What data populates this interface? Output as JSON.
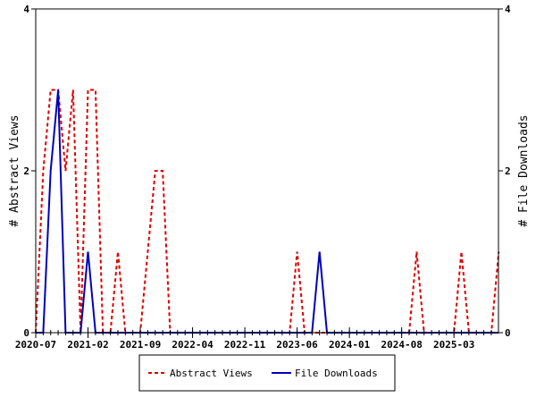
{
  "chart_data": {
    "type": "line",
    "title": "",
    "xlabel": "",
    "ylabel_left": "# Abstract Views",
    "ylabel_right": "# File Downloads",
    "ylim": [
      0,
      4
    ],
    "yticks": [
      "0",
      "2",
      "4"
    ],
    "x_start": "2020-07",
    "x_count_months": 63,
    "xtick_labels": [
      "2020-07",
      "2021-02",
      "2021-09",
      "2022-04",
      "2022-11",
      "2023-06",
      "2024-01",
      "2024-08",
      "2025-03"
    ],
    "xtick_month_index": [
      0,
      7,
      14,
      21,
      28,
      35,
      42,
      49,
      56
    ],
    "legend_position": "bottom",
    "series": [
      {
        "name": "Abstract Views",
        "color": "#dd0000",
        "style": "dashed",
        "values": [
          0,
          2,
          3,
          3,
          2,
          3,
          0,
          3,
          3,
          0,
          0,
          1,
          0,
          0,
          0,
          1,
          2,
          2,
          0,
          0,
          0,
          0,
          0,
          0,
          0,
          0,
          0,
          0,
          0,
          0,
          0,
          0,
          0,
          0,
          0,
          1,
          0,
          0,
          0,
          0,
          0,
          0,
          0,
          0,
          0,
          0,
          0,
          0,
          0,
          0,
          0,
          1,
          0,
          0,
          0,
          0,
          0,
          1,
          0,
          0,
          0,
          0,
          1
        ]
      },
      {
        "name": "File Downloads",
        "color": "#0000bb",
        "style": "solid",
        "values": [
          0,
          0,
          2,
          3,
          0,
          0,
          0,
          1,
          0,
          0,
          0,
          0,
          0,
          0,
          0,
          0,
          0,
          0,
          0,
          0,
          0,
          0,
          0,
          0,
          0,
          0,
          0,
          0,
          0,
          0,
          0,
          0,
          0,
          0,
          0,
          0,
          0,
          0,
          1,
          0,
          0,
          0,
          0,
          0,
          0,
          0,
          0,
          0,
          0,
          0,
          0,
          0,
          0,
          0,
          0,
          0,
          0,
          0,
          0,
          0,
          0,
          0,
          0
        ]
      }
    ]
  }
}
